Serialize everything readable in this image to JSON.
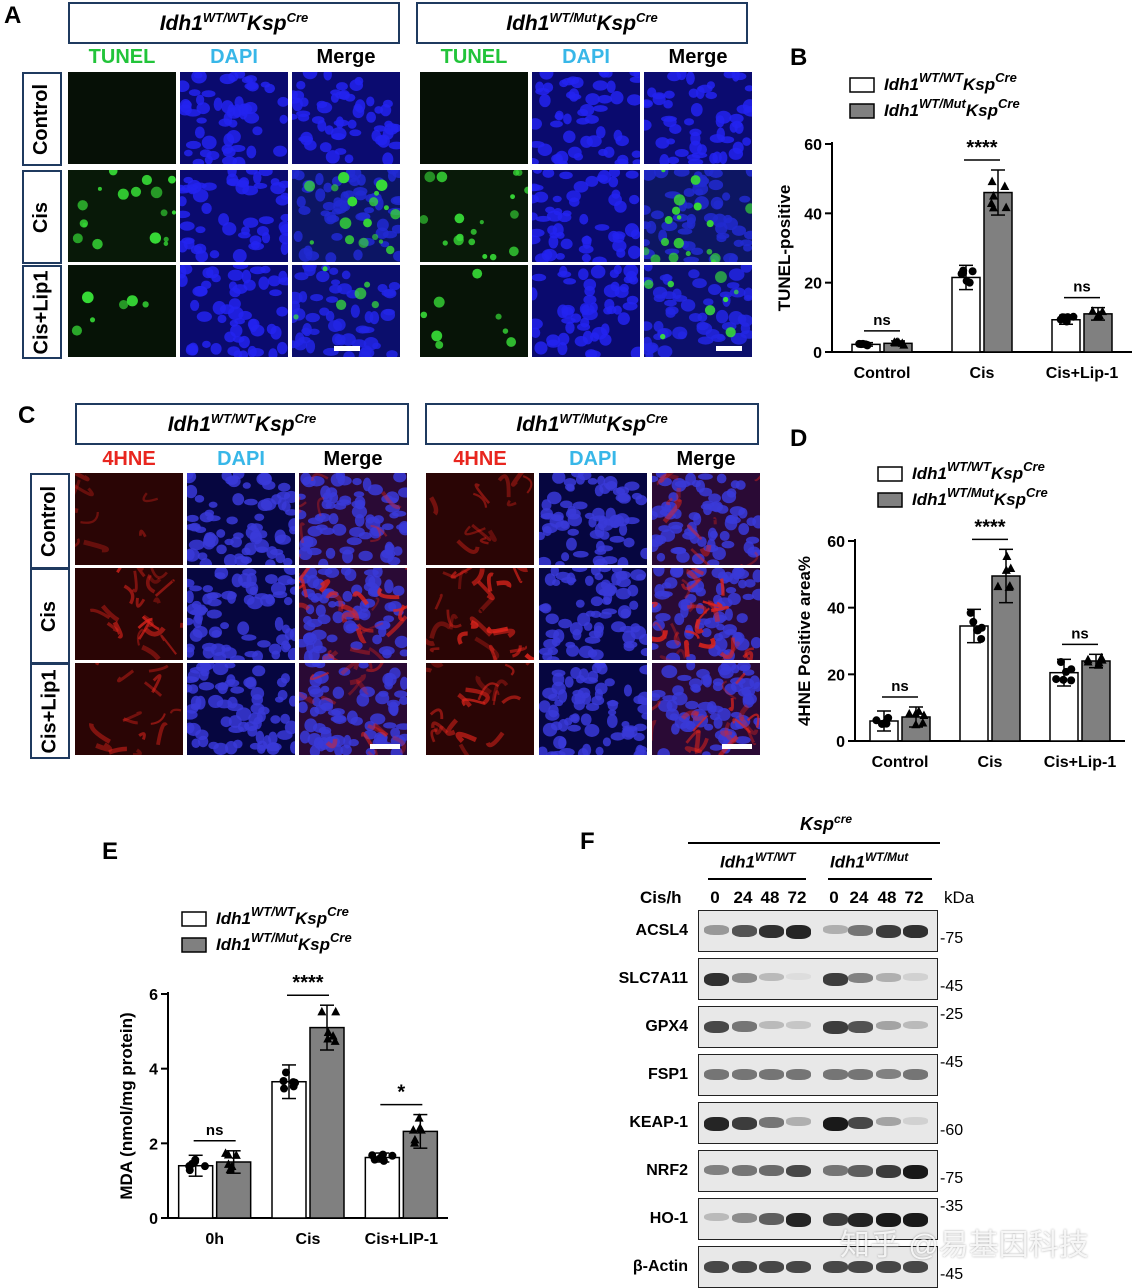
{
  "panels": {
    "a": "A",
    "b": "B",
    "c": "C",
    "d": "D",
    "e": "E",
    "f": "F"
  },
  "genotypes": {
    "wt_base": "Idh1",
    "wt_sup": "WT/WT",
    "wt_tail": "Ksp",
    "cre_sup": "Cre",
    "mut_base": "Idh1",
    "mut_sup": "WT/Mut",
    "mut_tail": "Ksp"
  },
  "panel_a": {
    "channels": [
      "TUNEL",
      "DAPI",
      "Merge",
      "TUNEL",
      "DAPI",
      "Merge"
    ],
    "rows": [
      "Control",
      "Cis",
      "Cis+Lip1"
    ]
  },
  "panel_c": {
    "channels": [
      "4HNE",
      "DAPI",
      "Merge",
      "4HNE",
      "DAPI",
      "Merge"
    ],
    "rows": [
      "Control",
      "Cis",
      "Cis+Lip1"
    ]
  },
  "colors": {
    "tunel": "#22c43a",
    "dapi": "#38b7e8",
    "hne": "#e8261f",
    "bar_wt": "#ffffff",
    "bar_mut": "#808080",
    "frame": "#1f3a5f"
  },
  "chart_data": [
    {
      "id": "B",
      "type": "bar",
      "categories": [
        "Control",
        "Cis",
        "Cis+Lip-1"
      ],
      "ylabel": "TUNEL-positive",
      "ylim": [
        0,
        60
      ],
      "yticks": [
        0,
        20,
        40,
        60
      ],
      "legend": [
        "Idh1 WT/WT Ksp Cre",
        "Idh1 WT/Mut Ksp Cre"
      ],
      "series": [
        {
          "values": [
            2.2,
            21.5,
            9.3
          ],
          "errors": [
            0.5,
            3.5,
            1.3
          ]
        },
        {
          "values": [
            2.5,
            46,
            11
          ],
          "errors": [
            0.7,
            6.5,
            1.8
          ]
        }
      ],
      "significance": [
        "ns",
        "****",
        "ns"
      ]
    },
    {
      "id": "D",
      "type": "bar",
      "categories": [
        "Control",
        "Cis",
        "Cis+Lip-1"
      ],
      "ylabel": "4HNE Positive area%",
      "ylim": [
        0,
        60
      ],
      "yticks": [
        0,
        20,
        40,
        60
      ],
      "legend": [
        "Idh1 WT/WT Ksp Cre",
        "Idh1 WT/Mut Ksp Cre"
      ],
      "series": [
        {
          "values": [
            6,
            34.5,
            20.5
          ],
          "errors": [
            3,
            5,
            4
          ]
        },
        {
          "values": [
            7.2,
            49.5,
            24
          ],
          "errors": [
            3,
            8,
            2
          ]
        }
      ],
      "significance": [
        "ns",
        "****",
        "ns"
      ]
    },
    {
      "id": "E",
      "type": "bar",
      "categories": [
        "0h",
        "Cis",
        "Cis+LIP-1"
      ],
      "ylabel": "MDA (nmol/mg protein)",
      "ylim": [
        0,
        6
      ],
      "yticks": [
        0,
        2,
        4,
        6
      ],
      "legend": [
        "Idh1 WT/WT Ksp Cre",
        "Idh1 WT/Mut Ksp Cre"
      ],
      "series": [
        {
          "values": [
            1.4,
            3.65,
            1.62
          ],
          "errors": [
            0.28,
            0.45,
            0.12
          ]
        },
        {
          "values": [
            1.5,
            5.1,
            2.32
          ],
          "errors": [
            0.3,
            0.6,
            0.45
          ]
        }
      ],
      "significance": [
        "ns",
        "****",
        "*"
      ]
    }
  ],
  "panel_f": {
    "title": "Ksp",
    "title_sup": "cre",
    "group1": "Idh1",
    "group1_sup": "WT/WT",
    "group2": "Idh1",
    "group2_sup": "WT/Mut",
    "time_label": "Cis/h",
    "times": [
      "0",
      "24",
      "48",
      "72",
      "0",
      "24",
      "48",
      "72"
    ],
    "kda_label": "kDa",
    "proteins": [
      "ACSL4",
      "SLC7A11",
      "GPX4",
      "FSP1",
      "KEAP-1",
      "NRF2",
      "HO-1",
      "β-Actin"
    ],
    "markers": [
      "75",
      "45",
      "25",
      "45",
      "60",
      "75",
      "35",
      "45"
    ],
    "intensity": [
      [
        0.45,
        0.75,
        0.9,
        0.95,
        0.35,
        0.6,
        0.85,
        0.9
      ],
      [
        0.9,
        0.5,
        0.3,
        0.15,
        0.85,
        0.55,
        0.35,
        0.2
      ],
      [
        0.8,
        0.6,
        0.3,
        0.25,
        0.85,
        0.75,
        0.4,
        0.3
      ],
      [
        0.6,
        0.6,
        0.6,
        0.6,
        0.6,
        0.6,
        0.55,
        0.6
      ],
      [
        0.95,
        0.85,
        0.6,
        0.35,
        1.0,
        0.8,
        0.4,
        0.2
      ],
      [
        0.55,
        0.6,
        0.65,
        0.8,
        0.6,
        0.7,
        0.85,
        1.0
      ],
      [
        0.3,
        0.5,
        0.7,
        0.95,
        0.85,
        0.95,
        1.0,
        1.0
      ],
      [
        0.8,
        0.8,
        0.8,
        0.8,
        0.8,
        0.8,
        0.8,
        0.8
      ]
    ],
    "watermark": "知乎 @易基因科技"
  }
}
